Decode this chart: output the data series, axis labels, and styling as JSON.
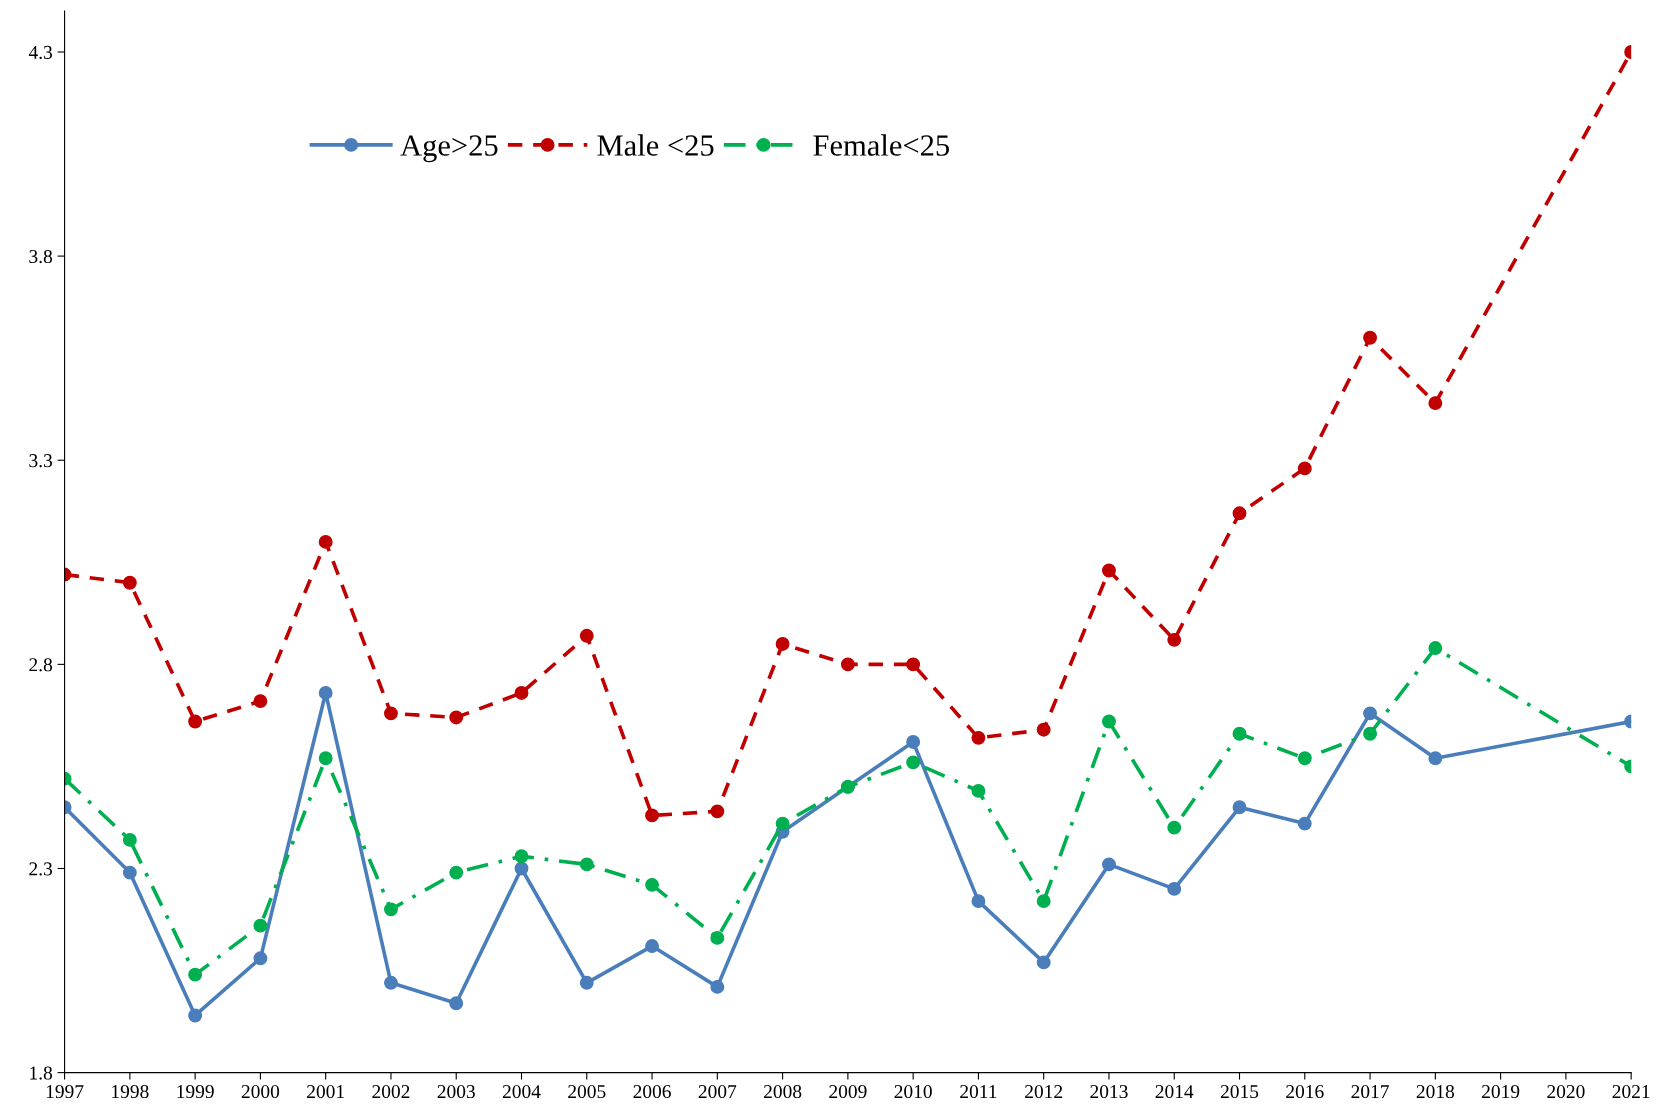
{
  "chart_data": {
    "type": "line",
    "xlim": [
      1997,
      2021
    ],
    "xticks": [
      1997,
      1998,
      1999,
      2000,
      2001,
      2002,
      2003,
      2004,
      2005,
      2006,
      2007,
      2008,
      2009,
      2010,
      2011,
      2012,
      2013,
      2014,
      2015,
      2016,
      2017,
      2018,
      2019,
      2020,
      2021
    ],
    "ylim": [
      1.8,
      4.4
    ],
    "yticks": [
      1.8,
      2.3,
      2.8,
      3.3,
      3.8,
      4.3
    ],
    "grid": false,
    "legend": "top left",
    "marker": "circle",
    "series": [
      {
        "name": "Age>25",
        "color": "#4a7ebb",
        "line_style": "solid",
        "x": [
          1997,
          1998,
          1999,
          2000,
          2001,
          2002,
          2003,
          2004,
          2005,
          2006,
          2007,
          2008,
          2009,
          2010,
          2011,
          2012,
          2013,
          2014,
          2015,
          2016,
          2017,
          2018,
          2021
        ],
        "values": [
          2.45,
          2.29,
          1.94,
          2.08,
          2.73,
          2.02,
          1.97,
          2.3,
          2.02,
          2.11,
          2.01,
          2.39,
          2.5,
          2.61,
          2.22,
          2.07,
          2.31,
          2.25,
          2.45,
          2.41,
          2.68,
          2.57,
          2.66
        ]
      },
      {
        "name": "Male <25",
        "color": "#c00000",
        "line_style": "dashed",
        "x": [
          1997,
          1998,
          1999,
          2000,
          2001,
          2002,
          2003,
          2004,
          2005,
          2006,
          2007,
          2008,
          2009,
          2010,
          2011,
          2012,
          2013,
          2014,
          2015,
          2016,
          2017,
          2018,
          2021
        ],
        "values": [
          3.02,
          3.0,
          2.66,
          2.71,
          3.1,
          2.68,
          2.67,
          2.73,
          2.87,
          2.43,
          2.44,
          2.85,
          2.8,
          2.8,
          2.62,
          2.64,
          3.03,
          2.86,
          3.17,
          3.28,
          3.6,
          3.44,
          4.3
        ]
      },
      {
        "name": "Female<25",
        "color": "#00b050",
        "line_style": "dashdot",
        "x": [
          1997,
          1998,
          1999,
          2000,
          2001,
          2002,
          2003,
          2004,
          2005,
          2006,
          2007,
          2008,
          2009,
          2010,
          2011,
          2012,
          2013,
          2014,
          2015,
          2016,
          2017,
          2018,
          2021
        ],
        "values": [
          2.52,
          2.37,
          2.04,
          2.16,
          2.57,
          2.2,
          2.29,
          2.33,
          2.31,
          2.26,
          2.13,
          2.41,
          2.5,
          2.56,
          2.49,
          2.22,
          2.66,
          2.4,
          2.63,
          2.57,
          2.63,
          2.84,
          2.55
        ]
      }
    ]
  }
}
